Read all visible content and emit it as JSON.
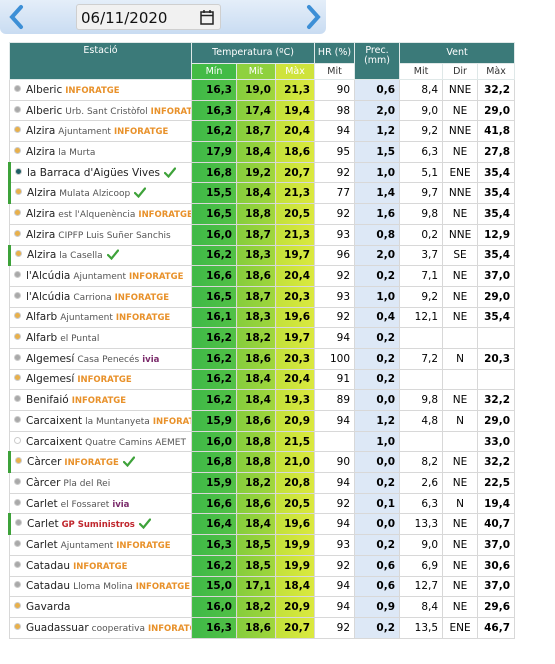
{
  "header": {
    "date": "06/11/2020"
  },
  "table": {
    "group_headers": [
      "Estació",
      "Temperatura (ºC)",
      "HR (%)",
      "Prec. (mm)",
      "Vent"
    ],
    "sub_headers": [
      "Mín",
      "Mit",
      "Màx",
      "Mit",
      "Mit",
      "Dir",
      "Màx"
    ],
    "rows": [
      {
        "name": "Alberic",
        "tag": {
          "text": "INFORATGE",
          "color": "#e8912a"
        },
        "dot": "#a9a9a9",
        "values": [
          "16,3",
          "19,0",
          "21,3",
          "90",
          "0,6",
          "8,4",
          "NNE",
          "32,2"
        ]
      },
      {
        "name": "Alberic",
        "place": "Urb. Sant Cristòfol",
        "tag": {
          "text": "INFORATGE",
          "color": "#e8912a"
        },
        "dot": "#a9a9a9",
        "values": [
          "16,3",
          "17,4",
          "19,4",
          "98",
          "2,0",
          "9,0",
          "NE",
          "29,0"
        ]
      },
      {
        "name": "Alzira",
        "place": "Ajuntament",
        "tag": {
          "text": "INFORATGE",
          "color": "#e8912a"
        },
        "dot": "#e8b04a",
        "values": [
          "16,2",
          "18,7",
          "20,4",
          "94",
          "1,2",
          "9,2",
          "NNE",
          "41,8"
        ]
      },
      {
        "name": "Alzira",
        "place": "la Murta",
        "dot": "#e8b04a",
        "values": [
          "17,9",
          "18,4",
          "18,6",
          "95",
          "1,5",
          "6,3",
          "NE",
          "27,8"
        ]
      },
      {
        "name": "la Barraca d'Aigües Vives",
        "check": true,
        "dot": "#1f5f66",
        "values": [
          "16,8",
          "19,2",
          "20,7",
          "92",
          "1,0",
          "5,1",
          "ENE",
          "35,4"
        ]
      },
      {
        "name": "Alzira",
        "place": "Mulata Alzicoop",
        "check": true,
        "dot": "#e8b04a",
        "values": [
          "15,5",
          "18,4",
          "21,3",
          "77",
          "1,4",
          "9,7",
          "NNE",
          "35,4"
        ]
      },
      {
        "name": "Alzira",
        "place": "est l'Alquenència",
        "tag": {
          "text": "INFORATGE",
          "color": "#e8912a"
        },
        "dot": "#e8b04a",
        "values": [
          "16,5",
          "18,8",
          "20,5",
          "92",
          "1,6",
          "9,8",
          "NE",
          "35,4"
        ]
      },
      {
        "name": "Alzira",
        "place": "CIPFP Luis Suñer Sanchis",
        "dot": "#e8b04a",
        "values": [
          "16,0",
          "18,7",
          "21,3",
          "93",
          "0,8",
          "0,2",
          "NNE",
          "12,9"
        ]
      },
      {
        "name": "Alzira",
        "place": "la Casella",
        "check": true,
        "dot": "#e8b04a",
        "values": [
          "16,2",
          "18,3",
          "19,7",
          "96",
          "2,0",
          "3,7",
          "SE",
          "35,4"
        ]
      },
      {
        "name": "l'Alcúdia",
        "place": "Ajuntament",
        "tag": {
          "text": "INFORATGE",
          "color": "#e8912a"
        },
        "dot": "#a9a9a9",
        "values": [
          "16,6",
          "18,6",
          "20,4",
          "92",
          "0,2",
          "7,1",
          "NE",
          "37,0"
        ]
      },
      {
        "name": "l'Alcúdia",
        "place": "Carriona",
        "tag": {
          "text": "INFORATGE",
          "color": "#e8912a"
        },
        "dot": "#a9a9a9",
        "values": [
          "16,5",
          "18,7",
          "20,3",
          "93",
          "1,0",
          "9,2",
          "NE",
          "29,0"
        ]
      },
      {
        "name": "Alfarb",
        "place": "Ajuntament",
        "tag": {
          "text": "INFORATGE",
          "color": "#e8912a"
        },
        "dot": "#e8b04a",
        "values": [
          "16,1",
          "18,3",
          "19,6",
          "92",
          "0,4",
          "12,1",
          "NE",
          "35,4"
        ]
      },
      {
        "name": "Alfarb",
        "place": "el Puntal",
        "dot": "#e8b04a",
        "values": [
          "16,2",
          "18,2",
          "19,7",
          "94",
          "0,2",
          null,
          null,
          null
        ]
      },
      {
        "name": "Algemesí",
        "place": "Casa Penecés",
        "tag": {
          "text": "ivia",
          "color": "#7a2a6a"
        },
        "dot": "#a9a9a9",
        "values": [
          "16,2",
          "18,6",
          "20,3",
          "100",
          "0,2",
          "7,2",
          "N",
          "20,3"
        ]
      },
      {
        "name": "Algemesí",
        "tag": {
          "text": "INFORATGE",
          "color": "#e8912a"
        },
        "dot": "#e8b04a",
        "values": [
          "16,2",
          "18,4",
          "20,4",
          "91",
          "0,2",
          null,
          null,
          null
        ]
      },
      {
        "name": "Benifaió",
        "tag": {
          "text": "INFORATGE",
          "color": "#e8912a"
        },
        "dot": "#a9a9a9",
        "values": [
          "16,2",
          "18,4",
          "19,3",
          "89",
          "0,0",
          "9,8",
          "NE",
          "32,2"
        ]
      },
      {
        "name": "Carcaixent",
        "place": "la Muntanyeta",
        "tag": {
          "text": "INFORATGE",
          "color": "#e8912a"
        },
        "dot": "#a9a9a9",
        "values": [
          "15,9",
          "18,6",
          "20,9",
          "94",
          "1,2",
          "4,8",
          "N",
          "29,0"
        ]
      },
      {
        "name": "Carcaixent",
        "place": "Quatre Camins AEMET",
        "dot": "#ffffff",
        "values": [
          "16,0",
          "18,8",
          "21,5",
          null,
          "1,0",
          null,
          null,
          "33,0"
        ]
      },
      {
        "name": "Càrcer",
        "tag": {
          "text": "INFORATGE",
          "color": "#e8912a"
        },
        "check": true,
        "dot": "#e8b04a",
        "values": [
          "16,8",
          "18,8",
          "21,0",
          "90",
          "0,0",
          "8,2",
          "NE",
          "32,2"
        ]
      },
      {
        "name": "Càrcer",
        "place": "Pla del Rei",
        "dot": "#a9a9a9",
        "values": [
          "15,9",
          "18,2",
          "20,8",
          "94",
          "0,2",
          "2,6",
          "NE",
          "22,5"
        ]
      },
      {
        "name": "Carlet",
        "place": "el Fossaret",
        "tag": {
          "text": "ivia",
          "color": "#7a2a6a"
        },
        "dot": "#a9a9a9",
        "values": [
          "16,6",
          "18,6",
          "20,5",
          "92",
          "0,1",
          "6,3",
          "N",
          "19,4"
        ]
      },
      {
        "name": "Carlet",
        "tag": {
          "text": "GP Suministros",
          "color": "#c0262d"
        },
        "check": true,
        "dot": "#a9a9a9",
        "values": [
          "16,4",
          "18,4",
          "19,6",
          "94",
          "0,0",
          "13,3",
          "NE",
          "40,7"
        ]
      },
      {
        "name": "Carlet",
        "place": "Ajuntament",
        "tag": {
          "text": "INFORATGE",
          "color": "#e8912a"
        },
        "dot": "#a9a9a9",
        "values": [
          "16,3",
          "18,5",
          "19,9",
          "93",
          "0,2",
          "9,0",
          "NE",
          "37,0"
        ]
      },
      {
        "name": "Catadau",
        "tag": {
          "text": "INFORATGE",
          "color": "#e8912a"
        },
        "dot": "#a9a9a9",
        "values": [
          "16,2",
          "18,5",
          "19,9",
          "92",
          "0,6",
          "6,9",
          "NE",
          "30,6"
        ]
      },
      {
        "name": "Catadau",
        "place": "Lloma Molina",
        "tag": {
          "text": "INFORATGE",
          "color": "#e8912a"
        },
        "dot": "#a9a9a9",
        "values": [
          "15,0",
          "17,1",
          "18,4",
          "94",
          "0,6",
          "12,7",
          "NE",
          "37,0"
        ]
      },
      {
        "name": "Gavarda",
        "dot": "#e8b04a",
        "values": [
          "16,0",
          "18,2",
          "20,9",
          "94",
          "0,9",
          "8,4",
          "NE",
          "29,6"
        ]
      },
      {
        "name": "Guadassuar",
        "place": "cooperativa",
        "tag": {
          "text": "INFORATGE",
          "color": "#e8912a"
        },
        "dot": "#e8b04a",
        "values": [
          "16,3",
          "18,6",
          "20,7",
          "92",
          "0,2",
          "13,5",
          "ENE",
          "46,7"
        ]
      }
    ]
  }
}
